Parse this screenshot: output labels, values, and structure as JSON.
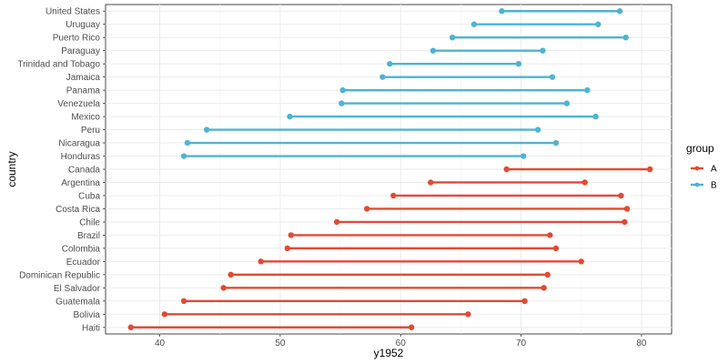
{
  "chart_data": {
    "type": "dumbbell",
    "xlabel": "y1952",
    "ylabel": "country",
    "xlim": [
      35.5,
      82.5
    ],
    "x_ticks": [
      40,
      50,
      60,
      70,
      80
    ],
    "x_tick_labels": [
      "40",
      "50",
      "60",
      "70",
      "80"
    ],
    "grid": true,
    "legend": {
      "title": "group",
      "placement": "right",
      "entries": [
        {
          "label": "A",
          "color": "#E24A33"
        },
        {
          "label": "B",
          "color": "#4EB3D3"
        }
      ]
    },
    "rows": [
      {
        "country": "United States",
        "group": "B",
        "start": 68.4,
        "end": 78.2
      },
      {
        "country": "Uruguay",
        "group": "B",
        "start": 66.1,
        "end": 76.4
      },
      {
        "country": "Puerto Rico",
        "group": "B",
        "start": 64.3,
        "end": 78.7
      },
      {
        "country": "Paraguay",
        "group": "B",
        "start": 62.7,
        "end": 71.8
      },
      {
        "country": "Trinidad and Tobago",
        "group": "B",
        "start": 59.1,
        "end": 69.8
      },
      {
        "country": "Jamaica",
        "group": "B",
        "start": 58.5,
        "end": 72.6
      },
      {
        "country": "Panama",
        "group": "B",
        "start": 55.2,
        "end": 75.5
      },
      {
        "country": "Venezuela",
        "group": "B",
        "start": 55.1,
        "end": 73.8
      },
      {
        "country": "Mexico",
        "group": "B",
        "start": 50.8,
        "end": 76.2
      },
      {
        "country": "Peru",
        "group": "B",
        "start": 43.9,
        "end": 71.4
      },
      {
        "country": "Nicaragua",
        "group": "B",
        "start": 42.3,
        "end": 72.9
      },
      {
        "country": "Honduras",
        "group": "B",
        "start": 42.0,
        "end": 70.2
      },
      {
        "country": "Canada",
        "group": "A",
        "start": 68.8,
        "end": 80.7
      },
      {
        "country": "Argentina",
        "group": "A",
        "start": 62.5,
        "end": 75.3
      },
      {
        "country": "Cuba",
        "group": "A",
        "start": 59.4,
        "end": 78.3
      },
      {
        "country": "Costa Rica",
        "group": "A",
        "start": 57.2,
        "end": 78.8
      },
      {
        "country": "Chile",
        "group": "A",
        "start": 54.7,
        "end": 78.6
      },
      {
        "country": "Brazil",
        "group": "A",
        "start": 50.9,
        "end": 72.4
      },
      {
        "country": "Colombia",
        "group": "A",
        "start": 50.6,
        "end": 72.9
      },
      {
        "country": "Ecuador",
        "group": "A",
        "start": 48.4,
        "end": 75.0
      },
      {
        "country": "Dominican Republic",
        "group": "A",
        "start": 45.9,
        "end": 72.2
      },
      {
        "country": "El Salvador",
        "group": "A",
        "start": 45.3,
        "end": 71.9
      },
      {
        "country": "Guatemala",
        "group": "A",
        "start": 42.0,
        "end": 70.3
      },
      {
        "country": "Bolivia",
        "group": "A",
        "start": 40.4,
        "end": 65.6
      },
      {
        "country": "Haiti",
        "group": "A",
        "start": 37.6,
        "end": 60.9
      }
    ]
  }
}
